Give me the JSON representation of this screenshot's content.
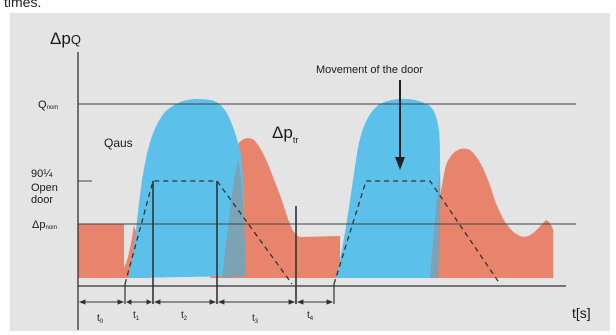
{
  "caption_fragment": "times.",
  "diagram": {
    "y_axis_label": {
      "main": "Δp",
      "sub": "Q"
    },
    "x_axis_label": "t[s]",
    "levels": {
      "q_nom": {
        "main": "Q",
        "sub": "nom"
      },
      "ninety": "90¼",
      "open_door": [
        "Open",
        "door"
      ],
      "dp_nom": {
        "main": "Δp",
        "sub": "nom"
      }
    },
    "series_labels": {
      "q_aus": "Qaus",
      "dp_tr": {
        "main": "Δp",
        "sub": "tr"
      }
    },
    "annotation": "Movement of the door",
    "intervals": [
      {
        "main": "t",
        "sub": "0"
      },
      {
        "main": "t",
        "sub": "1"
      },
      {
        "main": "t",
        "sub": "2"
      },
      {
        "main": "t",
        "sub": "3"
      },
      {
        "main": "t",
        "sub": "4"
      }
    ],
    "colors": {
      "panel_bg": "#e4e4e4",
      "q_fill": "#5bc1ea",
      "dp_fill": "#e8846b",
      "overlap_fill": "#7fa0ad",
      "line": "#333333"
    }
  }
}
